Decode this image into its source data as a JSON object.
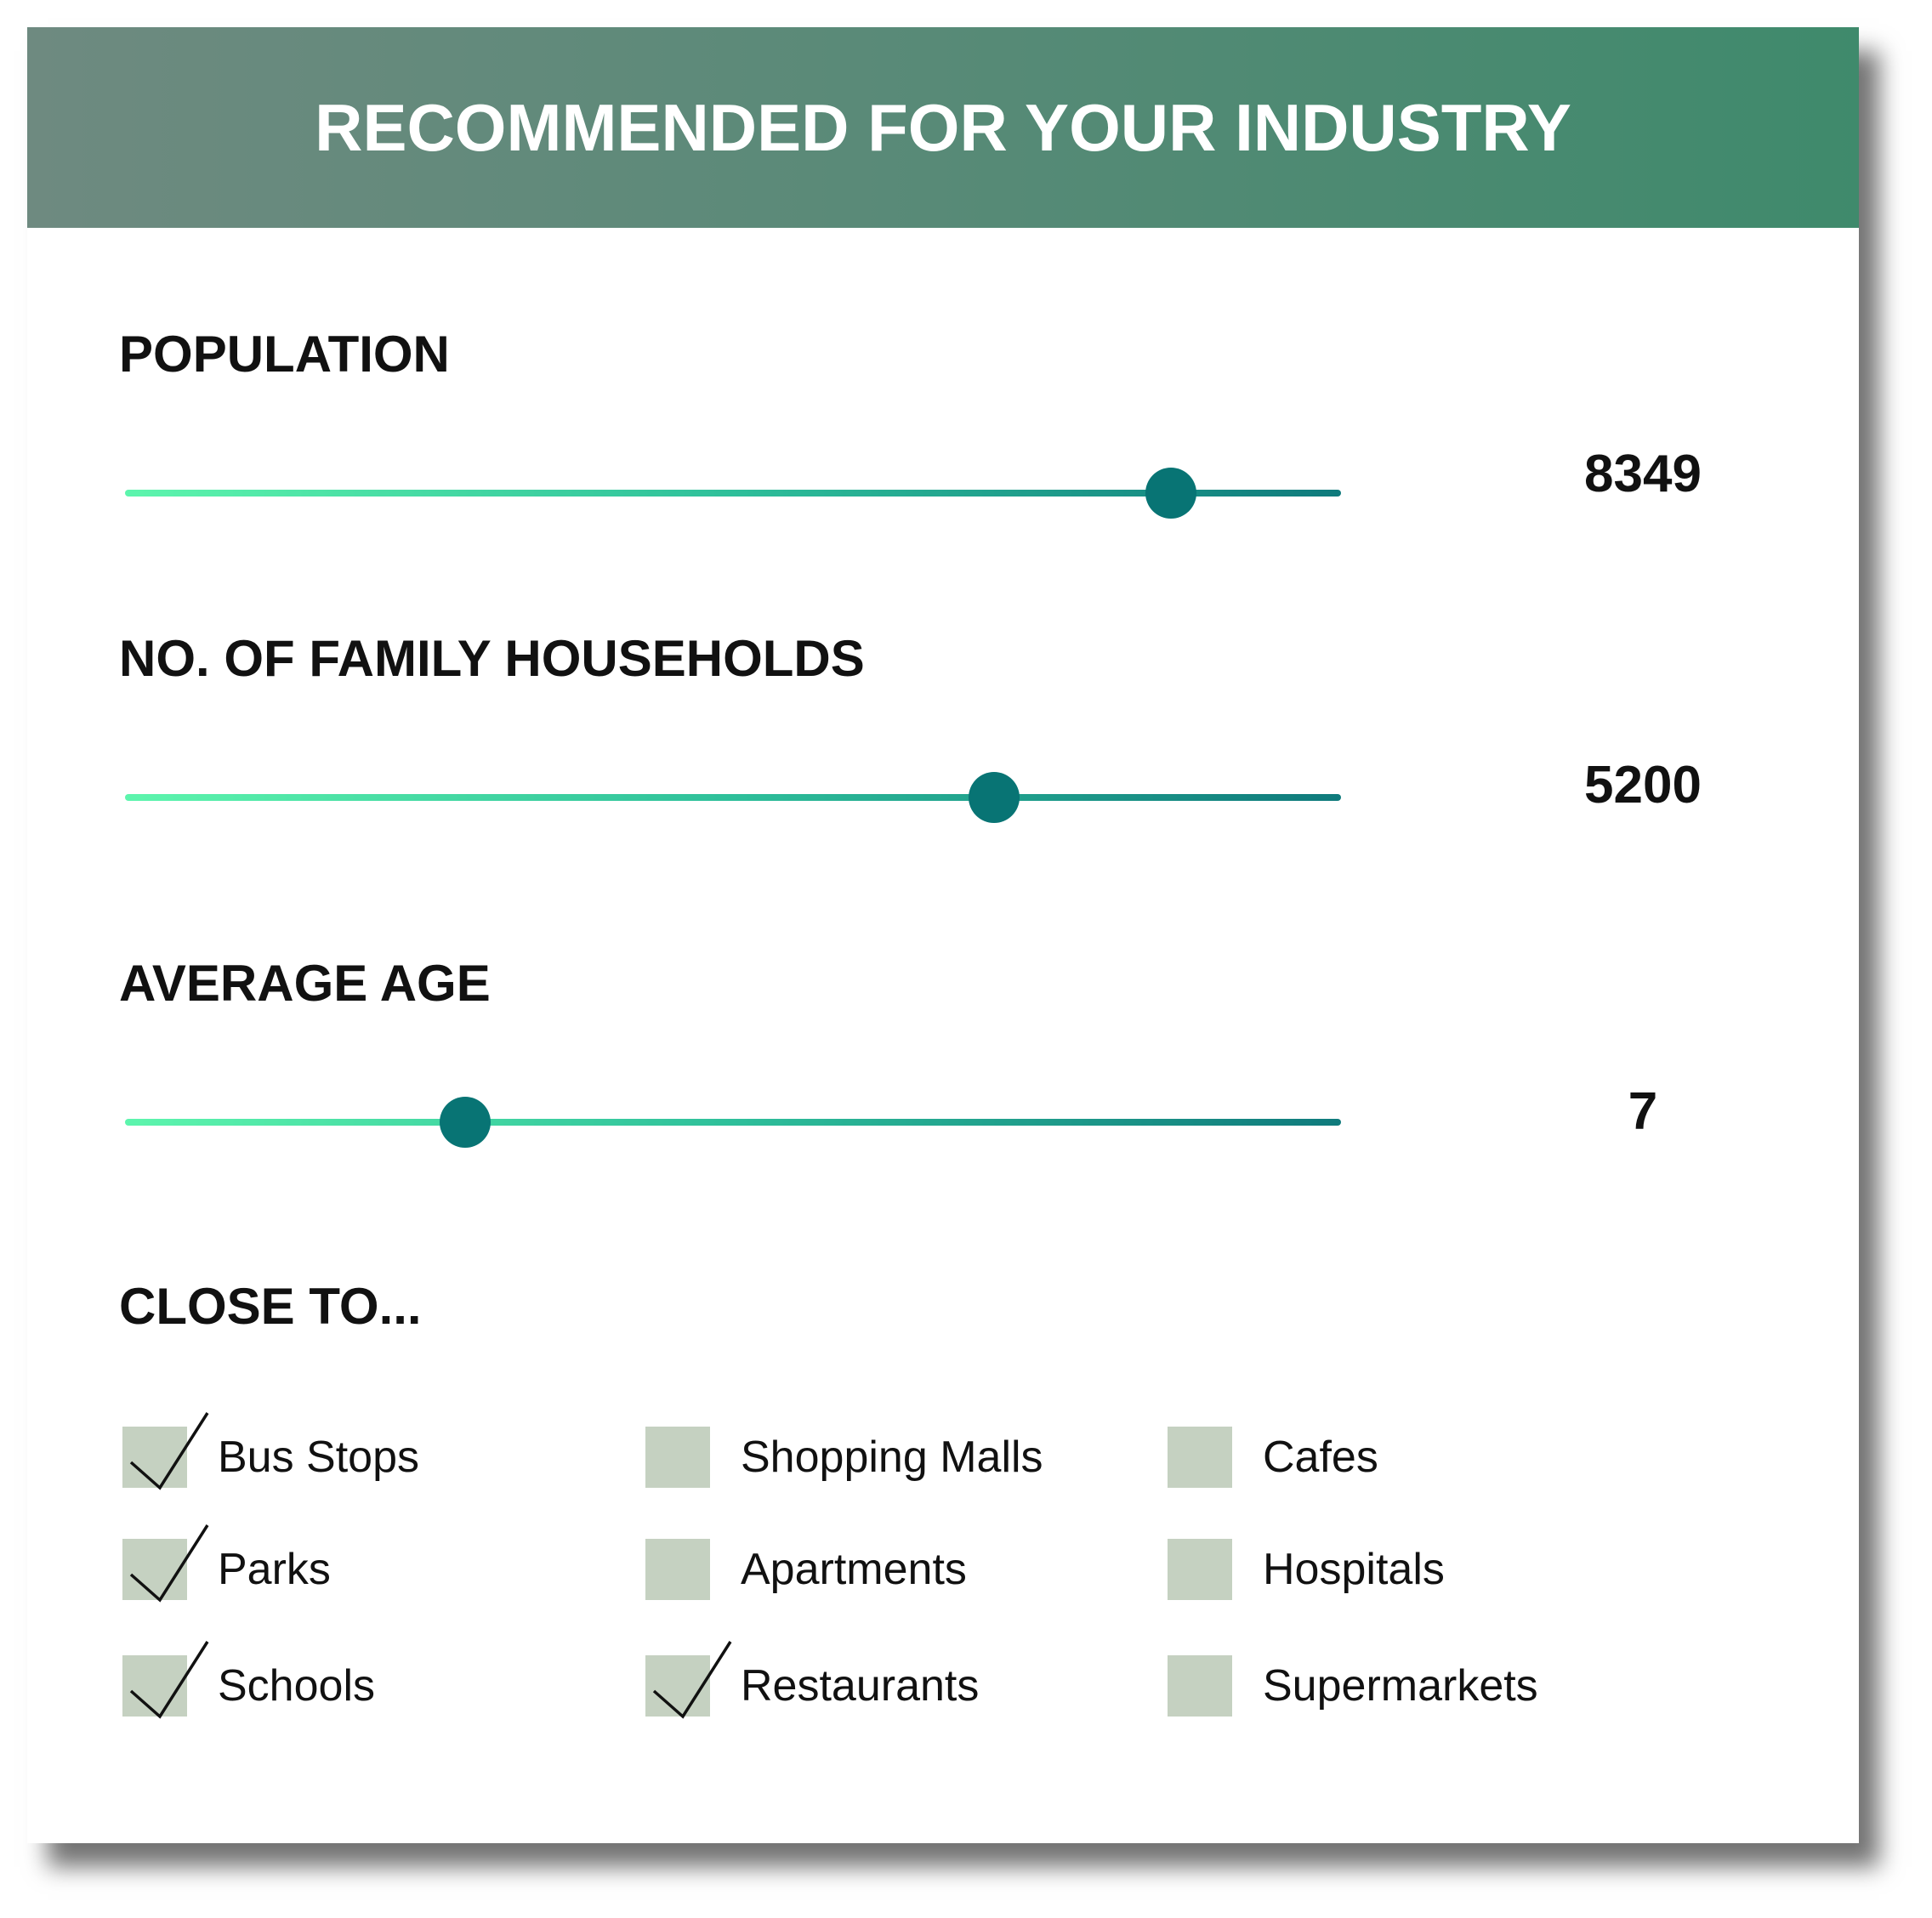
{
  "header": {
    "title": "RECOMMENDED FOR YOUR INDUSTRY"
  },
  "population": {
    "label": "POPULATION",
    "value": "8349",
    "level": 0.86
  },
  "households": {
    "label": "NO. OF FAMILY HOUSEHOLDS",
    "value": "5200",
    "level": 0.715
  },
  "age": {
    "label": "AVERAGE AGE",
    "value": "7",
    "level": 0.28
  },
  "close_to": {
    "label": "CLOSE TO...",
    "options": [
      {
        "label": "Bus Stops",
        "checked": true
      },
      {
        "label": "Shopping Malls",
        "checked": false
      },
      {
        "label": "Cafes",
        "checked": false
      },
      {
        "label": "Parks",
        "checked": true
      },
      {
        "label": "Apartments",
        "checked": false
      },
      {
        "label": "Hospitals",
        "checked": false
      },
      {
        "label": "Schools",
        "checked": true
      },
      {
        "label": "Restaurants",
        "checked": true
      },
      {
        "label": "Supermarkets",
        "checked": false
      }
    ]
  },
  "colors": {
    "header_start": "#6e8a80",
    "header_end": "#3f8a6c",
    "thumb": "#087474",
    "track_start": "#5df5ad",
    "track_end": "#0f7a7c",
    "checkbox": "#c5d1c1"
  }
}
